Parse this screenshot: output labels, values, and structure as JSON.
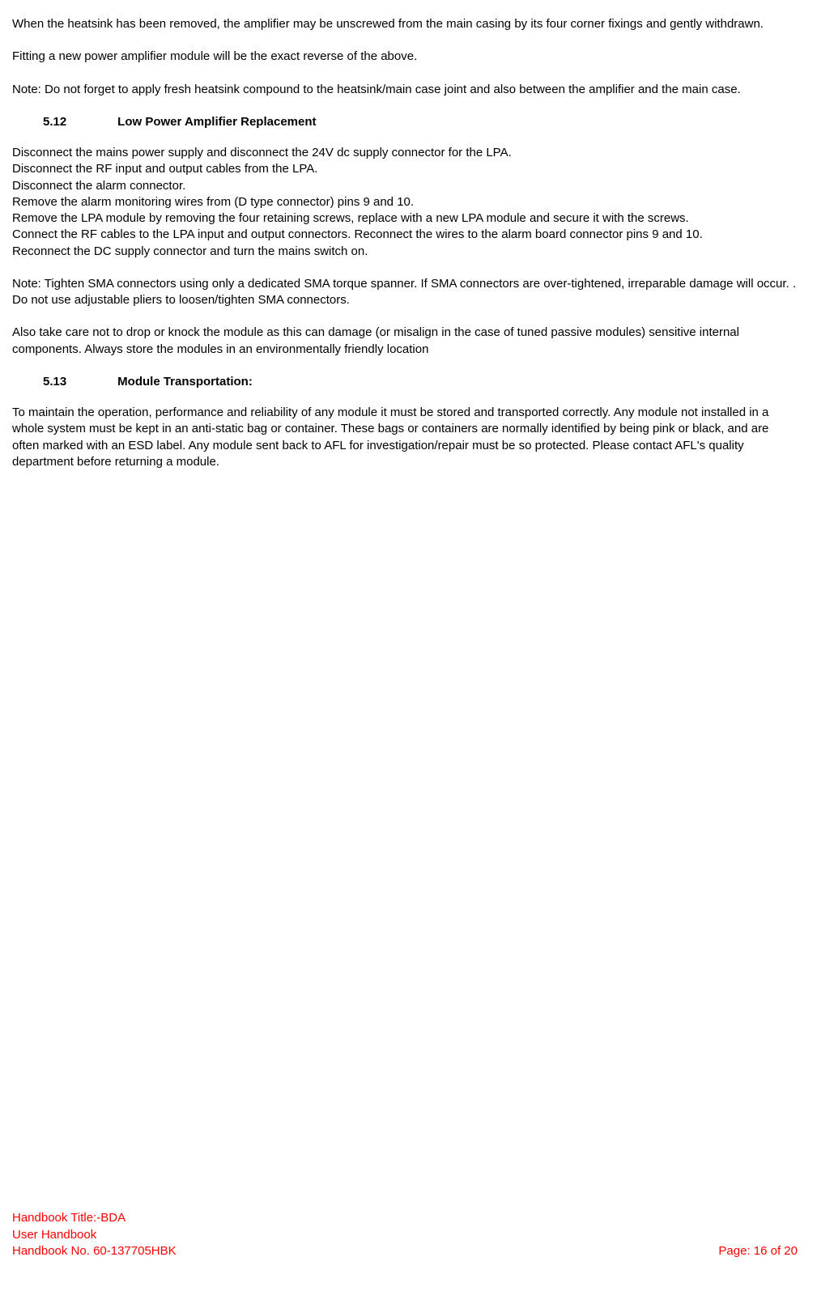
{
  "p1": "When the heatsink has been removed, the amplifier may be unscrewed from the main casing by its four corner fixings and gently withdrawn.",
  "p2": "Fitting a new power amplifier module will be the exact reverse of the above.",
  "p3": "Note:   Do not forget to apply fresh heatsink compound to the heatsink/main case joint and also between the amplifier and the main case.",
  "h512_num": "5.12",
  "h512_title": "Low Power Amplifier Replacement",
  "p4a": "Disconnect the mains power supply and disconnect the 24V dc supply connector for the LPA.",
  "p4b": "Disconnect the RF input and output cables from the LPA.",
  "p4c": "Disconnect the alarm connector.",
  "p4d": "Remove the alarm monitoring wires from (D type connector) pins 9 and 10.",
  "p4e": "Remove the LPA module by removing the four retaining screws, replace with a new LPA module and secure it with the screws.",
  "p4f": "Connect the RF cables to the LPA input and output connectors. Reconnect the wires to the alarm board connector pins 9 and 10.",
  "p4g": "Reconnect the DC supply connector and turn the mains switch on.",
  "p5": "Note:   Tighten SMA connectors using only a dedicated SMA torque spanner. If SMA connectors are over-tightened, irreparable damage will occur. . Do not use adjustable pliers to loosen/tighten SMA connectors.",
  "p6": "Also take care not to drop or knock the module as this can damage (or misalign in the case of tuned passive modules) sensitive internal components. Always store the modules in an environmentally friendly location",
  "h513_num": "5.13",
  "h513_title": "Module Transportation:",
  "p7": "To maintain the operation, performance and reliability of any module it must be stored and transported correctly. Any module not installed in a whole system must be kept in an anti-static bag or container. These bags or containers are normally identified by being pink or black, and are often marked with an ESD label. Any module sent back to AFL for investigation/repair must be so protected. Please contact AFL's quality department before returning a module.",
  "footer_title": "Handbook Title:-BDA",
  "footer_sub": "User Handbook",
  "footer_num": "Handbook No. 60-137705HBK",
  "footer_page": "Page: 16 of 20"
}
